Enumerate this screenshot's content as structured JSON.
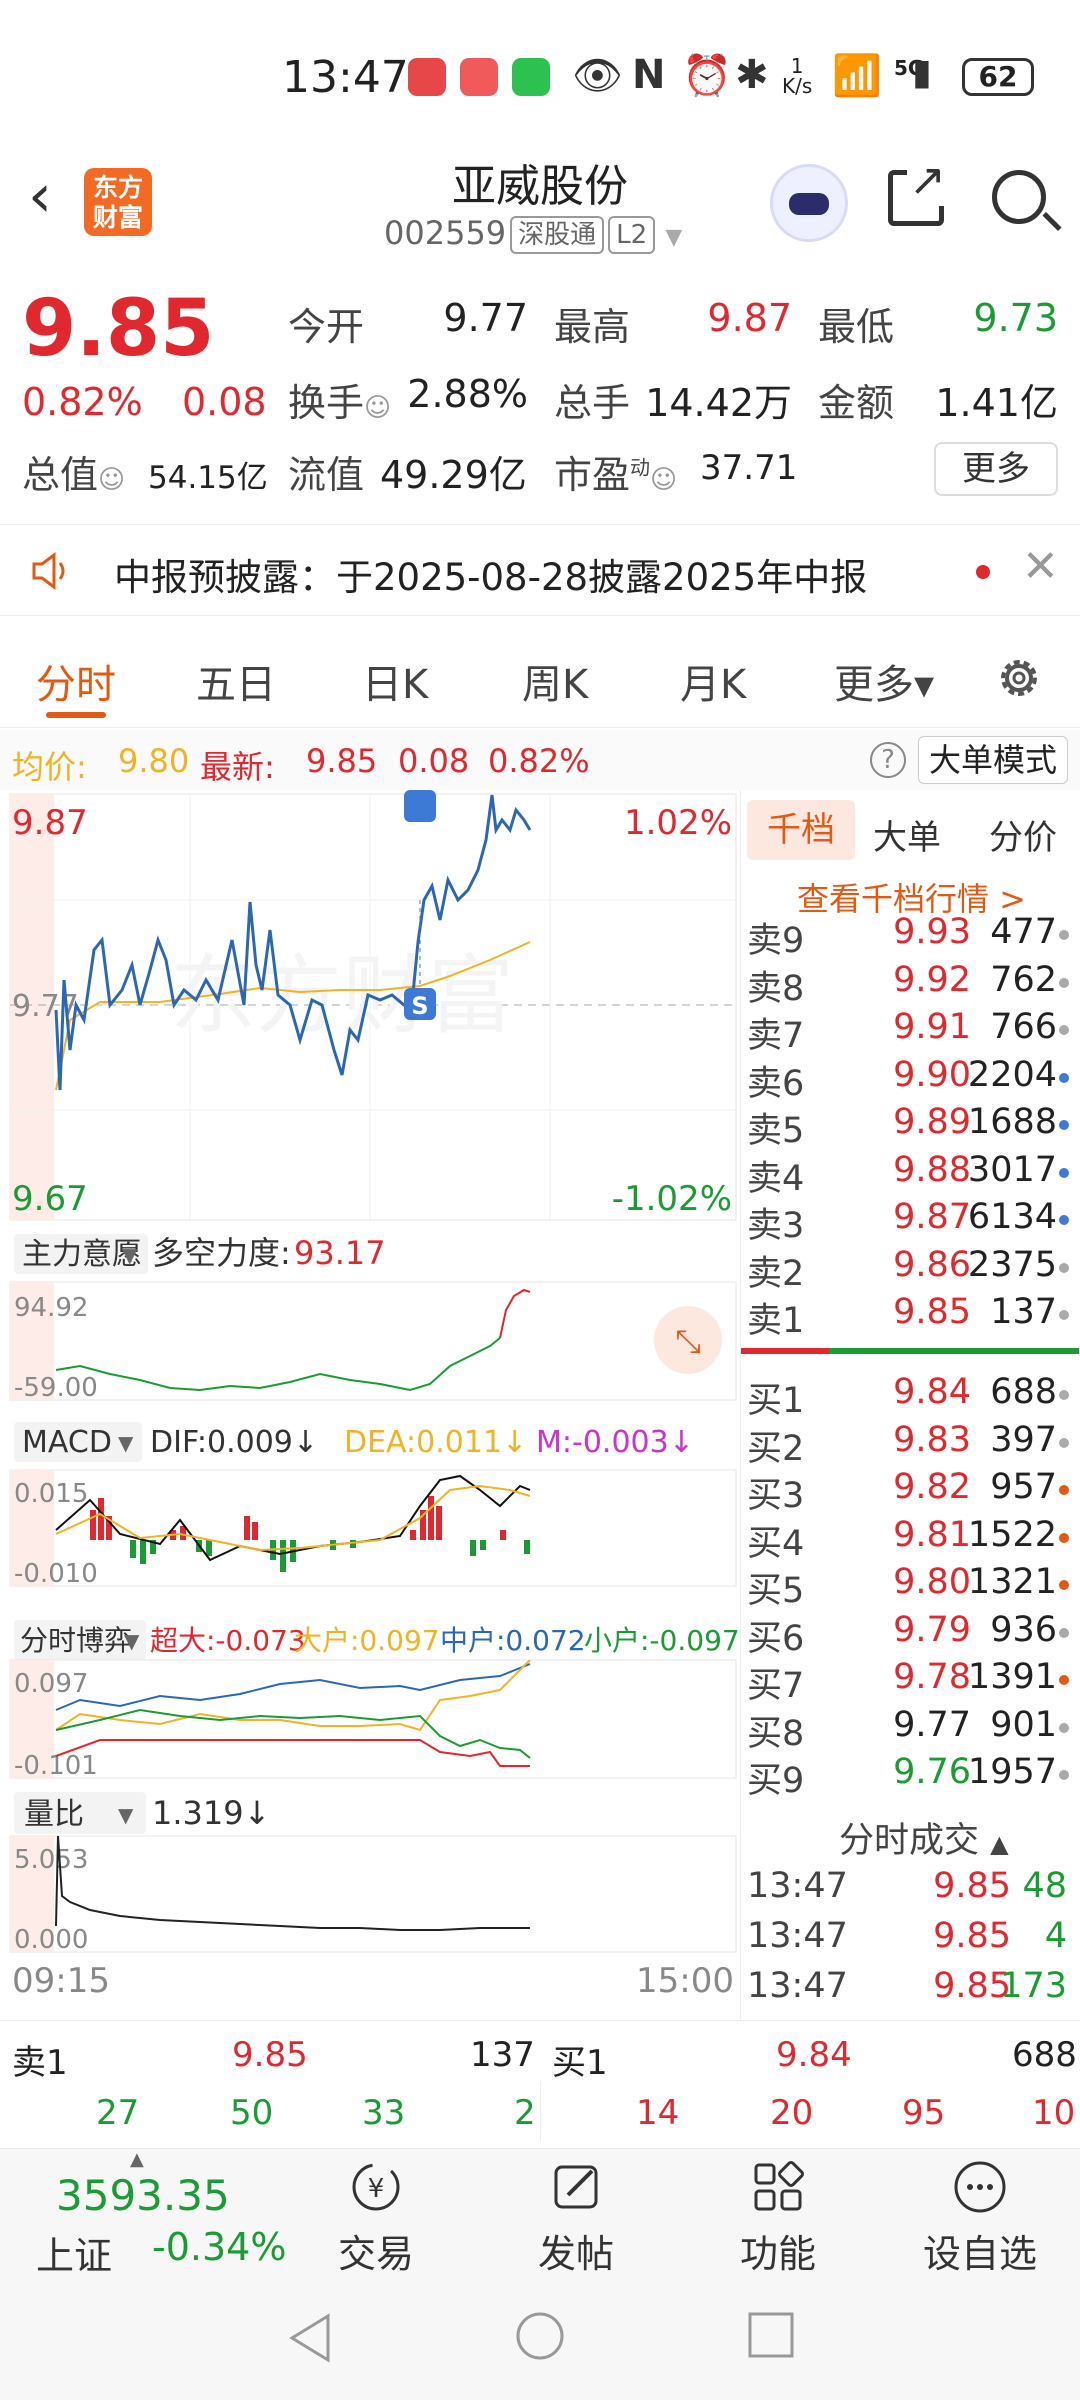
{
  "status_bar": {
    "time": "13:47",
    "speed_top": "1",
    "speed_unit": "K/s",
    "network": "5G",
    "battery": "62"
  },
  "header": {
    "back_icon": "back-arrow-icon",
    "logo_text": "东方财富",
    "title": "亚威股份",
    "code": "002559",
    "tag_connect": "深股通",
    "tag_level": "L2"
  },
  "quote": {
    "price": "9.85",
    "change_pct": "0.82%",
    "change": "0.08",
    "open_label": "今开",
    "open": "9.77",
    "high_label": "最高",
    "high": "9.87",
    "low_label": "最低",
    "low": "9.73",
    "turnover_label": "换手",
    "turnover": "2.88%",
    "volume_label": "总手",
    "volume": "14.42万",
    "amount_label": "金额",
    "amount": "1.41亿",
    "mktcap_label": "总值",
    "mktcap": "54.15亿",
    "float_label": "流值",
    "float": "49.29亿",
    "pe_label": "市盈",
    "pe_sup": "动",
    "pe": "37.71",
    "more_label": "更多"
  },
  "notice": {
    "text": "中报预披露：于2025-08-28披露2025年中报"
  },
  "tabs": [
    {
      "label": "分时"
    },
    {
      "label": "五日"
    },
    {
      "label": "日K"
    },
    {
      "label": "周K"
    },
    {
      "label": "月K"
    },
    {
      "label": "更多▾"
    }
  ],
  "avg_bar": {
    "avg_label": "均价:",
    "avg": "9.80",
    "latest_label": "最新:",
    "latest": "9.85",
    "chg": "0.08",
    "pct": "0.82%",
    "big_mode": "大单模式"
  },
  "chart": {
    "price_top": "9.87",
    "price_mid": "9.77",
    "price_bottom": "9.67",
    "pct_top": "1.02%",
    "pct_bottom": "-1.02%",
    "time_start": "09:15",
    "time_end": "15:00",
    "ind1_name": "主力意愿",
    "ind1_label": "多空力度:",
    "ind1_value": "93.17",
    "ind1_top": "94.92",
    "ind1_bottom": "-59.00",
    "macd_name": "MACD",
    "dif": "DIF:0.009↓",
    "dea": "DEA:0.011↓",
    "m": "M:-0.003↓",
    "macd_top": "0.015",
    "macd_bottom": "-0.010",
    "game_name": "分时博弈",
    "super": "超大:-0.073",
    "big": "大户:0.097",
    "mid": "中户:0.072",
    "small": "小户:-0.097",
    "game_top": "0.097",
    "game_bottom": "-0.101",
    "vr_name": "量比",
    "vr_value": "1.319↓",
    "vr_top": "5.053",
    "vr_bottom": "0.000",
    "watermark": "东方财富",
    "s_marker": "S"
  },
  "orderbook": {
    "tabs": [
      "千档",
      "大单",
      "分价"
    ],
    "link": "查看千档行情 >",
    "asks": [
      {
        "label": "卖9",
        "price": "9.93",
        "vol": "477"
      },
      {
        "label": "卖8",
        "price": "9.92",
        "vol": "762"
      },
      {
        "label": "卖7",
        "price": "9.91",
        "vol": "766"
      },
      {
        "label": "卖6",
        "price": "9.90",
        "vol": "2204"
      },
      {
        "label": "卖5",
        "price": "9.89",
        "vol": "1688"
      },
      {
        "label": "卖4",
        "price": "9.88",
        "vol": "3017"
      },
      {
        "label": "卖3",
        "price": "9.87",
        "vol": "6134"
      },
      {
        "label": "卖2",
        "price": "9.86",
        "vol": "2375"
      },
      {
        "label": "卖1",
        "price": "9.85",
        "vol": "137"
      }
    ],
    "bids": [
      {
        "label": "买1",
        "price": "9.84",
        "vol": "688"
      },
      {
        "label": "买2",
        "price": "9.83",
        "vol": "397"
      },
      {
        "label": "买3",
        "price": "9.82",
        "vol": "957"
      },
      {
        "label": "买4",
        "price": "9.81",
        "vol": "1522"
      },
      {
        "label": "买5",
        "price": "9.80",
        "vol": "1321"
      },
      {
        "label": "买6",
        "price": "9.79",
        "vol": "936"
      },
      {
        "label": "买7",
        "price": "9.78",
        "vol": "1391"
      },
      {
        "label": "买8",
        "price": "9.77",
        "vol": "901"
      },
      {
        "label": "买9",
        "price": "9.76",
        "vol": "1957"
      }
    ],
    "trades_title": "分时成交",
    "trades": [
      {
        "time": "13:47",
        "price": "9.85",
        "vol": "48"
      },
      {
        "time": "13:47",
        "price": "9.85",
        "vol": "4"
      },
      {
        "time": "13:47",
        "price": "9.85",
        "vol": "173"
      }
    ]
  },
  "bid_ask": {
    "ask_label": "卖1",
    "ask_price": "9.85",
    "ask_vol": "137",
    "bid_label": "买1",
    "bid_price": "9.84",
    "bid_vol": "688",
    "ask_queue": [
      "27",
      "50",
      "33",
      "2"
    ],
    "bid_queue": [
      "14",
      "20",
      "95",
      "10"
    ]
  },
  "bottom_nav": {
    "index_value": "3593.35",
    "index_name": "上证",
    "index_chg": "-0.34%",
    "items": [
      "交易",
      "发帖",
      "功能",
      "设自选"
    ]
  },
  "colors": {
    "red": "#e0282e",
    "green": "#1a9b33",
    "orange": "#e05a14",
    "blue": "#2c67b5",
    "avg_line": "#f0b323"
  }
}
